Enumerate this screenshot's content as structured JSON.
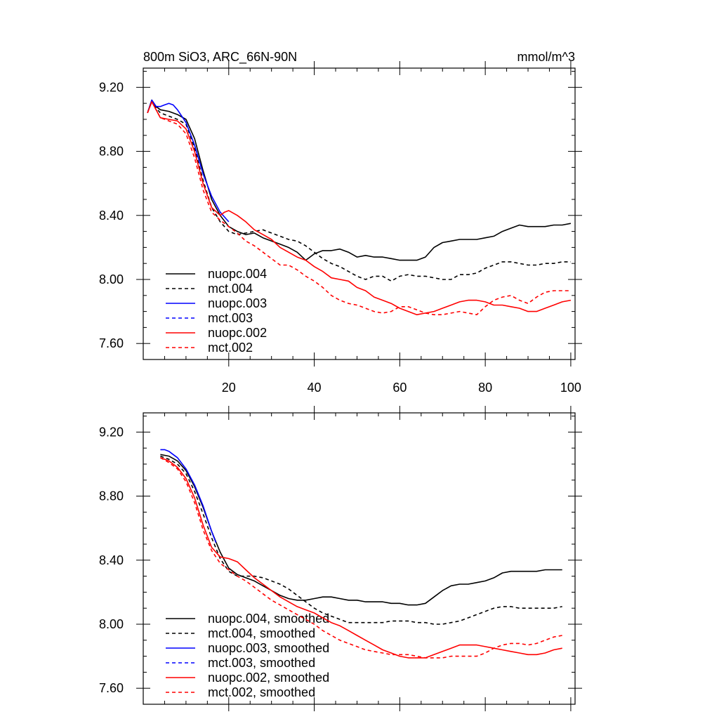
{
  "header": {
    "left_title": "800m SiO3, ARC_66N-90N",
    "right_title": "mmol/m^3"
  },
  "colors": {
    "nuopc_004": "#000000",
    "mct_004": "#000000",
    "nuopc_003": "#0000ff",
    "mct_003": "#0000ff",
    "nuopc_002": "#ff0000",
    "mct_002": "#ff0000"
  },
  "chart_data": [
    {
      "type": "line",
      "title": "800m SiO3, ARC_66N-90N",
      "units": "mmol/m^3",
      "xlim": [
        0,
        101
      ],
      "ylim": [
        7.5,
        9.32
      ],
      "xticks": [
        20,
        40,
        60,
        80,
        100
      ],
      "yticks": [
        7.6,
        8.0,
        8.4,
        8.8,
        9.2
      ],
      "ytick_labels": [
        "7.60",
        "8.00",
        "8.40",
        "8.80",
        "9.20"
      ],
      "xtick_labels": [
        "20",
        "40",
        "60",
        "80",
        "100"
      ],
      "grid": false,
      "legend_position": "bottom-left",
      "series": [
        {
          "name": "nuopc.004",
          "color": "#000000",
          "dash": "solid",
          "x": [
            1,
            2,
            3,
            4,
            6,
            8,
            10,
            12,
            14,
            16,
            18,
            20,
            22,
            24,
            26,
            28,
            30,
            32,
            34,
            36,
            38,
            39,
            40,
            42,
            44,
            46,
            48,
            50,
            52,
            54,
            56,
            58,
            60,
            62,
            64,
            66,
            68,
            70,
            72,
            74,
            76,
            78,
            80,
            82,
            84,
            86,
            88,
            90,
            92,
            94,
            96,
            98,
            100
          ],
          "y": [
            9.04,
            9.12,
            9.08,
            9.06,
            9.05,
            9.03,
            9.0,
            8.88,
            8.68,
            8.5,
            8.4,
            8.33,
            8.3,
            8.28,
            8.29,
            8.26,
            8.24,
            8.22,
            8.2,
            8.17,
            8.12,
            8.14,
            8.16,
            8.18,
            8.18,
            8.19,
            8.17,
            8.14,
            8.15,
            8.14,
            8.14,
            8.13,
            8.12,
            8.12,
            8.12,
            8.14,
            8.2,
            8.23,
            8.24,
            8.25,
            8.25,
            8.25,
            8.26,
            8.27,
            8.3,
            8.32,
            8.34,
            8.33,
            8.33,
            8.33,
            8.34,
            8.34,
            8.35
          ]
        },
        {
          "name": "mct.004",
          "color": "#000000",
          "dash": "dashed",
          "x": [
            1,
            2,
            3,
            4,
            6,
            8,
            10,
            12,
            14,
            16,
            18,
            20,
            22,
            24,
            26,
            28,
            30,
            32,
            34,
            36,
            38,
            40,
            42,
            44,
            46,
            48,
            50,
            52,
            54,
            56,
            58,
            60,
            62,
            64,
            66,
            68,
            70,
            72,
            74,
            76,
            78,
            80,
            82,
            84,
            86,
            88,
            90,
            92,
            94,
            96,
            98,
            100
          ],
          "y": [
            9.04,
            9.12,
            9.07,
            9.04,
            9.02,
            9.0,
            8.97,
            8.82,
            8.62,
            8.45,
            8.36,
            8.3,
            8.28,
            8.29,
            8.3,
            8.31,
            8.29,
            8.27,
            8.25,
            8.24,
            8.21,
            8.17,
            8.13,
            8.1,
            8.08,
            8.05,
            8.02,
            8.0,
            8.02,
            8.02,
            7.99,
            8.02,
            8.03,
            8.02,
            8.02,
            8.01,
            8.0,
            8.0,
            8.03,
            8.03,
            8.04,
            8.07,
            8.09,
            8.11,
            8.11,
            8.1,
            8.09,
            8.09,
            8.1,
            8.1,
            8.11,
            8.11
          ]
        },
        {
          "name": "nuopc.003",
          "color": "#0000ff",
          "dash": "solid",
          "x": [
            1,
            2,
            3,
            4,
            5,
            6,
            7,
            8,
            10,
            12,
            14,
            16,
            18,
            20
          ],
          "y": [
            9.04,
            9.12,
            9.08,
            9.08,
            9.09,
            9.1,
            9.09,
            9.06,
            8.98,
            8.84,
            8.66,
            8.52,
            8.42,
            8.36
          ]
        },
        {
          "name": "mct.003",
          "color": "#0000ff",
          "dash": "dashed",
          "x": [],
          "y": []
        },
        {
          "name": "nuopc.002",
          "color": "#ff0000",
          "dash": "solid",
          "x": [
            1,
            2,
            3,
            4,
            6,
            8,
            10,
            12,
            14,
            16,
            18,
            19,
            20,
            22,
            24,
            26,
            28,
            30,
            32,
            34,
            36,
            38,
            40,
            42,
            44,
            46,
            48,
            50,
            52,
            54,
            56,
            58,
            60,
            62,
            64,
            66,
            68,
            70,
            72,
            74,
            76,
            78,
            80,
            82,
            84,
            86,
            88,
            90,
            92,
            94,
            96,
            98,
            100
          ],
          "y": [
            9.04,
            9.11,
            9.06,
            9.01,
            9.0,
            8.99,
            8.94,
            8.8,
            8.6,
            8.45,
            8.4,
            8.42,
            8.43,
            8.4,
            8.36,
            8.31,
            8.28,
            8.25,
            8.2,
            8.17,
            8.14,
            8.12,
            8.08,
            8.05,
            8.01,
            8.0,
            7.99,
            7.95,
            7.93,
            7.89,
            7.87,
            7.85,
            7.82,
            7.8,
            7.78,
            7.79,
            7.8,
            7.82,
            7.84,
            7.86,
            7.87,
            7.87,
            7.86,
            7.84,
            7.84,
            7.83,
            7.82,
            7.8,
            7.8,
            7.82,
            7.84,
            7.86,
            7.87
          ]
        },
        {
          "name": "mct.002",
          "color": "#ff0000",
          "dash": "dashed",
          "x": [
            1,
            2,
            3,
            4,
            6,
            8,
            10,
            12,
            14,
            16,
            18,
            20,
            22,
            24,
            26,
            28,
            30,
            32,
            34,
            36,
            38,
            40,
            42,
            44,
            46,
            48,
            50,
            52,
            54,
            56,
            58,
            60,
            62,
            64,
            66,
            68,
            70,
            72,
            74,
            76,
            78,
            80,
            82,
            84,
            86,
            88,
            90,
            92,
            94,
            96,
            98,
            100
          ],
          "y": [
            9.04,
            9.11,
            9.06,
            9.01,
            8.99,
            8.97,
            8.91,
            8.76,
            8.56,
            8.42,
            8.37,
            8.33,
            8.29,
            8.24,
            8.21,
            8.17,
            8.13,
            8.09,
            8.09,
            8.06,
            8.02,
            7.99,
            7.95,
            7.9,
            7.87,
            7.85,
            7.84,
            7.82,
            7.8,
            7.79,
            7.8,
            7.83,
            7.83,
            7.81,
            7.79,
            7.78,
            7.78,
            7.79,
            7.8,
            7.79,
            7.78,
            7.83,
            7.87,
            7.89,
            7.9,
            7.87,
            7.85,
            7.89,
            7.92,
            7.93,
            7.93,
            7.93
          ]
        }
      ]
    },
    {
      "type": "line",
      "title": "",
      "xlim": [
        0,
        101
      ],
      "ylim": [
        7.5,
        9.32
      ],
      "yticks": [
        7.6,
        8.0,
        8.4,
        8.8,
        9.2
      ],
      "ytick_labels": [
        "7.60",
        "8.00",
        "8.40",
        "8.80",
        "9.20"
      ],
      "grid": false,
      "legend_position": "bottom-left",
      "series": [
        {
          "name": "nuopc.004, smoothed",
          "color": "#000000",
          "dash": "solid",
          "x": [
            4,
            6,
            8,
            10,
            12,
            14,
            16,
            18,
            20,
            22,
            24,
            26,
            28,
            30,
            32,
            34,
            36,
            38,
            40,
            42,
            44,
            46,
            48,
            50,
            52,
            54,
            56,
            58,
            60,
            62,
            64,
            66,
            68,
            70,
            72,
            74,
            76,
            78,
            80,
            82,
            84,
            86,
            88,
            90,
            92,
            94,
            96,
            98
          ],
          "y": [
            9.06,
            9.05,
            9.02,
            8.96,
            8.86,
            8.73,
            8.58,
            8.45,
            8.35,
            8.31,
            8.29,
            8.27,
            8.24,
            8.21,
            8.18,
            8.16,
            8.15,
            8.15,
            8.16,
            8.17,
            8.17,
            8.16,
            8.15,
            8.15,
            8.14,
            8.14,
            8.14,
            8.13,
            8.13,
            8.12,
            8.12,
            8.13,
            8.17,
            8.21,
            8.24,
            8.25,
            8.25,
            8.26,
            8.27,
            8.29,
            8.32,
            8.33,
            8.33,
            8.33,
            8.33,
            8.34,
            8.34,
            8.34
          ]
        },
        {
          "name": "mct.004, smoothed",
          "color": "#000000",
          "dash": "dashed",
          "x": [
            4,
            6,
            8,
            10,
            12,
            14,
            16,
            18,
            20,
            22,
            24,
            26,
            28,
            30,
            32,
            34,
            36,
            38,
            40,
            42,
            44,
            46,
            48,
            50,
            52,
            54,
            56,
            58,
            60,
            62,
            64,
            66,
            68,
            70,
            72,
            74,
            76,
            78,
            80,
            82,
            84,
            86,
            88,
            90,
            92,
            94,
            96,
            98
          ],
          "y": [
            9.05,
            9.03,
            9.0,
            8.94,
            8.83,
            8.69,
            8.54,
            8.41,
            8.33,
            8.3,
            8.3,
            8.3,
            8.29,
            8.27,
            8.25,
            8.22,
            8.18,
            8.14,
            8.1,
            8.07,
            8.05,
            8.03,
            8.01,
            8.01,
            8.01,
            8.01,
            8.01,
            8.02,
            8.02,
            8.02,
            8.01,
            8.01,
            8.0,
            8.0,
            8.01,
            8.02,
            8.04,
            8.06,
            8.08,
            8.1,
            8.11,
            8.11,
            8.1,
            8.1,
            8.1,
            8.1,
            8.1,
            8.11
          ]
        },
        {
          "name": "nuopc.003, smoothed",
          "color": "#0000ff",
          "dash": "solid",
          "x": [
            4,
            5,
            6,
            7,
            8,
            10,
            12,
            14,
            16,
            17
          ],
          "y": [
            9.09,
            9.09,
            9.08,
            9.06,
            9.04,
            8.97,
            8.87,
            8.74,
            8.58,
            8.51
          ]
        },
        {
          "name": "mct.003, smoothed",
          "color": "#0000ff",
          "dash": "dashed",
          "x": [],
          "y": []
        },
        {
          "name": "nuopc.002, smoothed",
          "color": "#ff0000",
          "dash": "solid",
          "x": [
            4,
            6,
            8,
            10,
            12,
            14,
            16,
            18,
            20,
            22,
            24,
            26,
            28,
            30,
            32,
            34,
            36,
            38,
            40,
            42,
            44,
            46,
            48,
            50,
            52,
            54,
            56,
            58,
            60,
            62,
            64,
            66,
            68,
            70,
            72,
            74,
            76,
            78,
            80,
            82,
            84,
            86,
            88,
            90,
            92,
            94,
            96,
            98
          ],
          "y": [
            9.04,
            9.02,
            8.98,
            8.91,
            8.79,
            8.62,
            8.48,
            8.42,
            8.41,
            8.39,
            8.34,
            8.29,
            8.25,
            8.21,
            8.17,
            8.14,
            8.11,
            8.09,
            8.07,
            8.04,
            8.01,
            7.99,
            7.96,
            7.93,
            7.9,
            7.87,
            7.84,
            7.82,
            7.8,
            7.79,
            7.79,
            7.79,
            7.81,
            7.83,
            7.85,
            7.87,
            7.87,
            7.87,
            7.86,
            7.85,
            7.84,
            7.83,
            7.82,
            7.81,
            7.81,
            7.82,
            7.84,
            7.85
          ]
        },
        {
          "name": "mct.002, smoothed",
          "color": "#ff0000",
          "dash": "dashed",
          "x": [
            4,
            6,
            8,
            10,
            12,
            14,
            16,
            18,
            20,
            22,
            24,
            26,
            28,
            30,
            32,
            34,
            36,
            38,
            40,
            42,
            44,
            46,
            48,
            50,
            52,
            54,
            56,
            58,
            60,
            62,
            64,
            66,
            68,
            70,
            72,
            74,
            76,
            78,
            80,
            82,
            84,
            86,
            88,
            90,
            92,
            94,
            96,
            98
          ],
          "y": [
            9.04,
            9.01,
            8.97,
            8.89,
            8.76,
            8.59,
            8.46,
            8.38,
            8.34,
            8.3,
            8.27,
            8.23,
            8.19,
            8.15,
            8.12,
            8.09,
            8.06,
            8.03,
            8.0,
            7.96,
            7.93,
            7.9,
            7.88,
            7.86,
            7.84,
            7.83,
            7.82,
            7.81,
            7.81,
            7.81,
            7.8,
            7.79,
            7.79,
            7.79,
            7.8,
            7.8,
            7.8,
            7.8,
            7.82,
            7.85,
            7.87,
            7.88,
            7.88,
            7.87,
            7.88,
            7.9,
            7.92,
            7.93
          ]
        }
      ]
    }
  ]
}
